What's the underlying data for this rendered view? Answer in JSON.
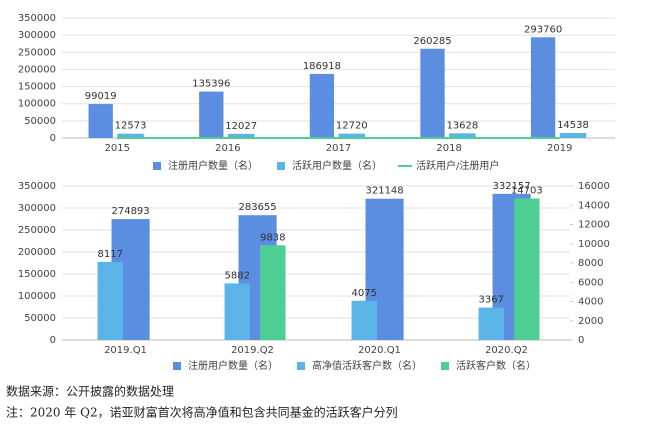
{
  "chart_data": [
    {
      "type": "bar",
      "categories": [
        "2015",
        "2016",
        "2017",
        "2018",
        "2019"
      ],
      "series": [
        {
          "name": "注册用户数量（名）",
          "color": "#5b8ee0",
          "values": [
            99019,
            135396,
            186918,
            260285,
            293760
          ]
        },
        {
          "name": "活跃用户数量（名）",
          "color": "#5ab4e8",
          "values": [
            12573,
            12027,
            12720,
            13628,
            14538
          ]
        },
        {
          "name": "活跃用户/注册用户",
          "color": "#4dcf94",
          "type": "line",
          "values": [
            0.127,
            0.089,
            0.068,
            0.052,
            0.049
          ]
        }
      ],
      "ylim": [
        0,
        350000
      ],
      "yticks": [
        0,
        50000,
        100000,
        150000,
        200000,
        250000,
        300000,
        350000
      ],
      "grid": true
    },
    {
      "type": "bar",
      "categories": [
        "2019.Q1",
        "2019.Q2",
        "2020.Q1",
        "2020.Q2"
      ],
      "series": [
        {
          "name": "注册用户数量（名）",
          "color": "#5b8ee0",
          "values": [
            274893,
            283655,
            321148,
            332157
          ]
        },
        {
          "name": "高净值活跃客户数（名）",
          "color": "#5ab4e8",
          "axis": "y2",
          "values": [
            8117,
            5882,
            4075,
            3367
          ]
        },
        {
          "name": "活跃客户数（名）",
          "color": "#4dcf94",
          "axis": "y2",
          "values": [
            null,
            9838,
            null,
            14703
          ]
        }
      ],
      "ylim": [
        0,
        350000
      ],
      "yticks": [
        0,
        50000,
        100000,
        150000,
        200000,
        250000,
        300000,
        350000
      ],
      "y2lim": [
        0,
        16000
      ],
      "y2ticks": [
        0,
        2000,
        4000,
        6000,
        8000,
        10000,
        12000,
        14000,
        16000
      ],
      "grid": true
    }
  ],
  "notes": [
    "数据来源：公开披露的数据处理",
    "注：2020 年 Q2，诺亚财富首次将高净值和包含共同基金的活跃客户分列"
  ]
}
